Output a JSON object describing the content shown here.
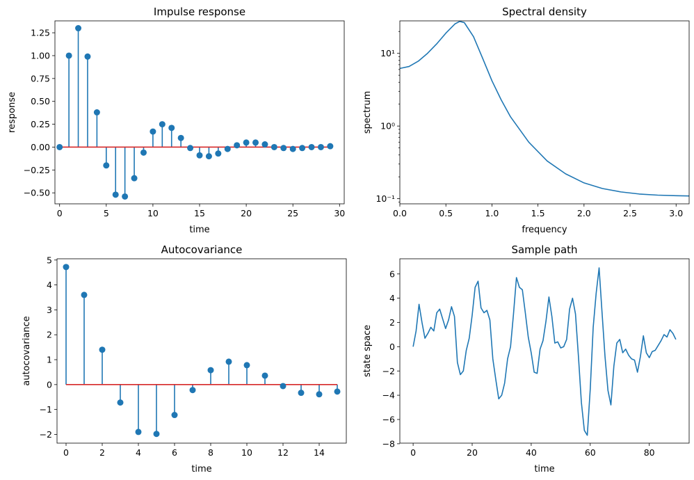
{
  "chart_data": [
    {
      "type": "stem",
      "title": "Impulse response",
      "xlabel": "time",
      "ylabel": "response",
      "xlim": [
        -0.5,
        30.5
      ],
      "ylim": [
        -0.62,
        1.38
      ],
      "xticks": [
        0,
        5,
        10,
        15,
        20,
        25,
        30
      ],
      "yticks": [
        -0.5,
        -0.25,
        0.0,
        0.25,
        0.5,
        0.75,
        1.0,
        1.25
      ],
      "ytick_labels": [
        "−0.50",
        "−0.25",
        "0.00",
        "0.25",
        "0.50",
        "0.75",
        "1.00",
        "1.25"
      ],
      "x": [
        0,
        1,
        2,
        3,
        4,
        5,
        6,
        7,
        8,
        9,
        10,
        11,
        12,
        13,
        14,
        15,
        16,
        17,
        18,
        19,
        20,
        21,
        22,
        23,
        24,
        25,
        26,
        27,
        28,
        29
      ],
      "y": [
        0.0,
        1.0,
        1.3,
        0.99,
        0.38,
        -0.2,
        -0.52,
        -0.54,
        -0.34,
        -0.06,
        0.17,
        0.25,
        0.21,
        0.1,
        -0.01,
        -0.09,
        -0.1,
        -0.07,
        -0.02,
        0.02,
        0.05,
        0.05,
        0.03,
        0.0,
        -0.01,
        -0.02,
        -0.01,
        0.0,
        0.0,
        0.01
      ],
      "colors": {
        "stem": "#1f77b4",
        "baseline": "#d62728"
      }
    },
    {
      "type": "line",
      "title": "Spectral density",
      "xlabel": "frequency",
      "ylabel": "spectrum",
      "scale_y": "log",
      "xlim": [
        0,
        3.1416
      ],
      "ylim": [
        0.085,
        28
      ],
      "xticks": [
        0.0,
        0.5,
        1.0,
        1.5,
        2.0,
        2.5,
        3.0
      ],
      "xtick_labels": [
        "0.0",
        "0.5",
        "1.0",
        "1.5",
        "2.0",
        "2.5",
        "3.0"
      ],
      "ytick_labels": [
        "10⁻¹",
        "10⁰",
        "10¹"
      ],
      "yticks": [
        0.1,
        1,
        10
      ],
      "x": [
        0.0,
        0.1,
        0.2,
        0.3,
        0.4,
        0.5,
        0.6,
        0.65,
        0.7,
        0.8,
        0.9,
        1.0,
        1.1,
        1.2,
        1.4,
        1.6,
        1.8,
        2.0,
        2.2,
        2.4,
        2.6,
        2.8,
        3.0,
        3.1416
      ],
      "y": [
        6.2,
        6.6,
        7.8,
        10.0,
        13.5,
        19.0,
        25.5,
        27.5,
        26.5,
        17.0,
        8.5,
        4.2,
        2.3,
        1.35,
        0.6,
        0.33,
        0.22,
        0.165,
        0.138,
        0.124,
        0.116,
        0.112,
        0.11,
        0.109
      ],
      "colors": {
        "line": "#1f77b4"
      }
    },
    {
      "type": "stem",
      "title": "Autocovariance",
      "xlabel": "time",
      "ylabel": "autocovariance",
      "xlim": [
        -0.5,
        15.5
      ],
      "ylim": [
        -2.35,
        5.05
      ],
      "xticks": [
        0,
        2,
        4,
        6,
        8,
        10,
        12,
        14
      ],
      "yticks": [
        -2,
        -1,
        0,
        1,
        2,
        3,
        4,
        5
      ],
      "ytick_labels": [
        "−2",
        "−1",
        "0",
        "1",
        "2",
        "3",
        "4",
        "5"
      ],
      "x": [
        0,
        1,
        2,
        3,
        4,
        5,
        6,
        7,
        8,
        9,
        10,
        11,
        12,
        13,
        14,
        15
      ],
      "y": [
        4.72,
        3.6,
        1.4,
        -0.72,
        -1.9,
        -1.98,
        -1.22,
        -0.22,
        0.58,
        0.92,
        0.78,
        0.36,
        -0.06,
        -0.33,
        -0.39,
        -0.28
      ],
      "colors": {
        "stem": "#1f77b4",
        "baseline": "#d62728"
      }
    },
    {
      "type": "line",
      "title": "Sample path",
      "xlabel": "time",
      "ylabel": "state space",
      "xlim": [
        -4.5,
        93.5
      ],
      "ylim": [
        -7.95,
        7.25
      ],
      "xticks": [
        0,
        20,
        40,
        60,
        80
      ],
      "yticks": [
        -8,
        -6,
        -4,
        -2,
        0,
        2,
        4,
        6
      ],
      "ytick_labels": [
        "−8",
        "−6",
        "−4",
        "−2",
        "0",
        "2",
        "4",
        "6"
      ],
      "x": [
        0,
        1,
        2,
        3,
        4,
        5,
        6,
        7,
        8,
        9,
        10,
        11,
        12,
        13,
        14,
        15,
        16,
        17,
        18,
        19,
        20,
        21,
        22,
        23,
        24,
        25,
        26,
        27,
        28,
        29,
        30,
        31,
        32,
        33,
        34,
        35,
        36,
        37,
        38,
        39,
        40,
        41,
        42,
        43,
        44,
        45,
        46,
        47,
        48,
        49,
        50,
        51,
        52,
        53,
        54,
        55,
        56,
        57,
        58,
        59,
        60,
        61,
        62,
        63,
        64,
        65,
        66,
        67,
        68,
        69,
        70,
        71,
        72,
        73,
        74,
        75,
        76,
        77,
        78,
        79,
        80,
        81,
        82,
        83,
        84,
        85,
        86,
        87,
        88,
        89
      ],
      "y": [
        0.0,
        1.3,
        3.5,
        2.0,
        0.7,
        1.1,
        1.6,
        1.3,
        2.8,
        3.1,
        2.3,
        1.5,
        2.2,
        3.3,
        2.5,
        -1.3,
        -2.3,
        -2.0,
        -0.3,
        0.7,
        2.6,
        4.9,
        5.4,
        3.2,
        2.8,
        3.0,
        2.2,
        -1.0,
        -2.7,
        -4.3,
        -4.0,
        -3.0,
        -1.0,
        0.0,
        2.7,
        5.7,
        4.9,
        4.7,
        2.8,
        0.8,
        -0.5,
        -2.1,
        -2.2,
        -0.2,
        0.5,
        2.1,
        4.1,
        2.5,
        0.3,
        0.4,
        -0.1,
        0.0,
        0.6,
        3.1,
        4.0,
        2.7,
        -0.8,
        -4.6,
        -6.9,
        -7.3,
        -3.5,
        1.6,
        4.4,
        6.5,
        2.8,
        -0.8,
        -3.6,
        -4.8,
        -1.6,
        0.3,
        0.6,
        -0.5,
        -0.2,
        -0.7,
        -1.0,
        -1.1,
        -2.1,
        -0.8,
        0.9,
        -0.5,
        -0.9,
        -0.4,
        -0.3,
        0.1,
        0.5,
        1.0,
        0.8,
        1.4,
        1.1,
        0.6
      ],
      "colors": {
        "line": "#1f77b4"
      }
    }
  ]
}
